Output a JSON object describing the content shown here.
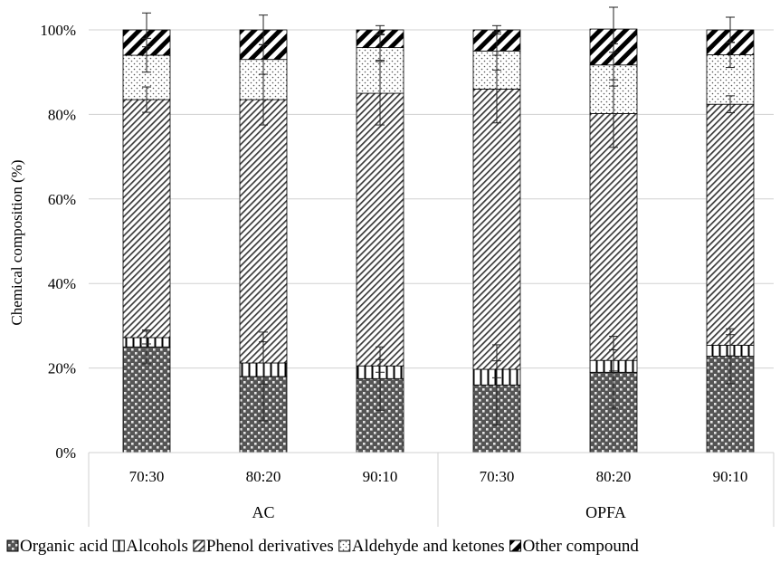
{
  "chart_data": {
    "type": "bar",
    "stacked": true,
    "ylabel": "Chemical composition (%)",
    "ylim": [
      0,
      100
    ],
    "yticks": [
      "0%",
      "20%",
      "40%",
      "60%",
      "80%",
      "100%"
    ],
    "grid": true,
    "legend_position": "bottom",
    "groups": [
      {
        "label": "AC",
        "categories": [
          "70:30",
          "80:20",
          "90:10"
        ]
      },
      {
        "label": "OPFA",
        "categories": [
          "70:30",
          "80:20",
          "90:10"
        ]
      }
    ],
    "categories": [
      "70:30",
      "80:20",
      "90:10",
      "70:30",
      "80:20",
      "90:10"
    ],
    "series": [
      {
        "name": "Organic acid",
        "pattern": "crosshatch",
        "values": [
          25,
          18,
          17.5,
          16,
          19,
          22.8
        ],
        "errors": [
          4,
          10.5,
          7.5,
          9.5,
          8.5,
          6.5
        ]
      },
      {
        "name": "Alcohols",
        "pattern": "vertical",
        "values": [
          2.2,
          3.2,
          3,
          3.7,
          2.8,
          2.6
        ],
        "errors": [
          1.5,
          5,
          1.5,
          2,
          2.5,
          2.5
        ]
      },
      {
        "name": "Phenol derivatives",
        "pattern": "diagonal-fine",
        "values": [
          56.3,
          62.3,
          64.5,
          66.3,
          58.4,
          57
        ],
        "errors": [
          3,
          6,
          7.5,
          8,
          8,
          2
        ]
      },
      {
        "name": "Aldehyde and ketones",
        "pattern": "dots",
        "values": [
          10.5,
          9.5,
          10.8,
          9,
          11.5,
          11.7
        ],
        "errors": [
          4,
          3.5,
          3,
          4.5,
          5,
          3
        ]
      },
      {
        "name": "Other compound",
        "pattern": "diagonal-bold",
        "values": [
          6,
          7,
          4.2,
          5,
          8.5,
          5.9
        ],
        "errors": [
          4,
          3.5,
          1,
          1,
          5.5,
          3
        ]
      }
    ]
  }
}
